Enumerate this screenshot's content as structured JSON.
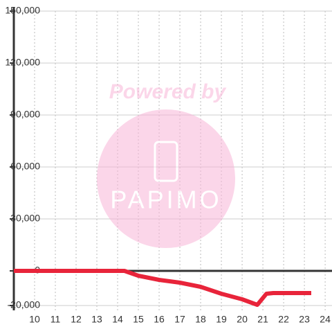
{
  "chart_data": {
    "type": "line",
    "watermark": "Powered by",
    "watermark_logo": "PAPIMO",
    "x": [
      9,
      14.33,
      15,
      16,
      17,
      18,
      19,
      20,
      20.73,
      21.17,
      21.5,
      23.33
    ],
    "series": [
      {
        "color": "#e8243a",
        "values": [
          0,
          0,
          -2800,
          -5200,
          -6800,
          -9200,
          -13200,
          -16400,
          -19600,
          -13200,
          -12800,
          -12800
        ]
      }
    ],
    "xlim": [
      9,
      24.33
    ],
    "xticks": [
      10,
      11,
      12,
      13,
      14,
      15,
      16,
      17,
      18,
      19,
      20,
      21,
      22,
      23,
      24
    ],
    "ylim": [
      -20000,
      150000
    ],
    "yticks": [
      {
        "value": -20000,
        "label": "-20,000"
      },
      {
        "value": 0,
        "label": "0"
      },
      {
        "value": 30000,
        "label": "30,000"
      },
      {
        "value": 60000,
        "label": "60,000"
      },
      {
        "value": 90000,
        "label": "90,000"
      },
      {
        "value": 120000,
        "label": "120,000"
      },
      {
        "value": 150000,
        "label": "150,000"
      }
    ],
    "grid": true
  }
}
